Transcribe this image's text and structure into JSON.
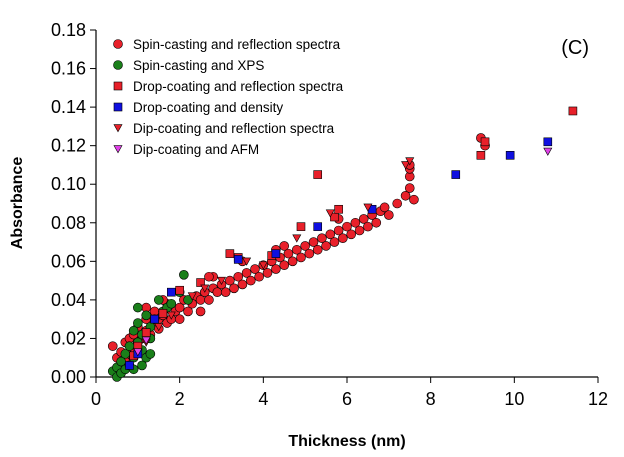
{
  "chart_data": {
    "type": "scatter",
    "panel_label": "(C)",
    "xlabel": "Thickness (nm)",
    "ylabel": "Absorbance",
    "xlim": [
      0,
      12
    ],
    "ylim": [
      0,
      0.18
    ],
    "x_ticks": [
      "0",
      "2",
      "4",
      "6",
      "8",
      "10",
      "12"
    ],
    "y_ticks": [
      "0.00",
      "0.02",
      "0.04",
      "0.06",
      "0.08",
      "0.10",
      "0.12",
      "0.14",
      "0.16",
      "0.18"
    ],
    "grid": false,
    "legend_position": "top-left",
    "series": [
      {
        "name": "Spin-casting and reflection spectra",
        "marker": "circle",
        "color": "#e8202a",
        "points": [
          [
            0.4,
            0.016
          ],
          [
            0.5,
            0.01
          ],
          [
            0.6,
            0.013
          ],
          [
            0.7,
            0.008
          ],
          [
            0.7,
            0.018
          ],
          [
            0.8,
            0.02
          ],
          [
            0.8,
            0.012
          ],
          [
            0.9,
            0.015
          ],
          [
            0.9,
            0.022
          ],
          [
            1.0,
            0.018
          ],
          [
            1.0,
            0.026
          ],
          [
            1.1,
            0.02
          ],
          [
            1.2,
            0.024
          ],
          [
            1.2,
            0.03
          ],
          [
            1.3,
            0.022
          ],
          [
            1.4,
            0.028
          ],
          [
            1.4,
            0.034
          ],
          [
            1.5,
            0.025
          ],
          [
            1.5,
            0.03
          ],
          [
            1.6,
            0.032
          ],
          [
            1.7,
            0.028
          ],
          [
            1.7,
            0.038
          ],
          [
            1.8,
            0.03
          ],
          [
            1.9,
            0.034
          ],
          [
            2.0,
            0.036
          ],
          [
            2.0,
            0.03
          ],
          [
            2.1,
            0.04
          ],
          [
            2.2,
            0.034
          ],
          [
            2.3,
            0.038
          ],
          [
            2.4,
            0.042
          ],
          [
            2.5,
            0.034
          ],
          [
            2.5,
            0.04
          ],
          [
            2.6,
            0.044
          ],
          [
            2.7,
            0.04
          ],
          [
            2.8,
            0.046
          ],
          [
            2.8,
            0.052
          ],
          [
            2.9,
            0.044
          ],
          [
            3.0,
            0.048
          ],
          [
            3.1,
            0.044
          ],
          [
            3.2,
            0.05
          ],
          [
            3.3,
            0.046
          ],
          [
            3.4,
            0.052
          ],
          [
            3.5,
            0.048
          ],
          [
            3.6,
            0.054
          ],
          [
            3.7,
            0.05
          ],
          [
            3.8,
            0.056
          ],
          [
            3.9,
            0.052
          ],
          [
            4.0,
            0.058
          ],
          [
            4.1,
            0.054
          ],
          [
            4.2,
            0.06
          ],
          [
            4.3,
            0.056
          ],
          [
            4.3,
            0.066
          ],
          [
            4.4,
            0.062
          ],
          [
            4.5,
            0.058
          ],
          [
            4.6,
            0.064
          ],
          [
            4.7,
            0.06
          ],
          [
            4.8,
            0.066
          ],
          [
            4.9,
            0.062
          ],
          [
            5.0,
            0.068
          ],
          [
            5.1,
            0.064
          ],
          [
            5.2,
            0.07
          ],
          [
            5.3,
            0.066
          ],
          [
            5.4,
            0.072
          ],
          [
            5.5,
            0.068
          ],
          [
            5.6,
            0.074
          ],
          [
            5.7,
            0.07
          ],
          [
            5.8,
            0.076
          ],
          [
            5.9,
            0.072
          ],
          [
            6.0,
            0.078
          ],
          [
            6.1,
            0.074
          ],
          [
            6.2,
            0.08
          ],
          [
            6.3,
            0.076
          ],
          [
            6.4,
            0.082
          ],
          [
            6.5,
            0.078
          ],
          [
            6.6,
            0.084
          ],
          [
            6.7,
            0.08
          ],
          [
            6.8,
            0.086
          ],
          [
            6.9,
            0.088
          ],
          [
            7.0,
            0.084
          ],
          [
            7.2,
            0.09
          ],
          [
            7.4,
            0.094
          ],
          [
            7.5,
            0.098
          ],
          [
            7.5,
            0.104
          ],
          [
            7.5,
            0.108
          ],
          [
            7.5,
            0.11
          ],
          [
            7.6,
            0.092
          ],
          [
            9.2,
            0.124
          ],
          [
            9.3,
            0.12
          ],
          [
            1.2,
            0.036
          ],
          [
            1.6,
            0.04
          ],
          [
            2.7,
            0.052
          ],
          [
            3.5,
            0.06
          ],
          [
            4.5,
            0.068
          ],
          [
            5.8,
            0.082
          ]
        ]
      },
      {
        "name": "Spin-casting and XPS",
        "marker": "circle",
        "color": "#1a7f1a",
        "points": [
          [
            0.4,
            0.003
          ],
          [
            0.5,
            0.0
          ],
          [
            0.5,
            0.005
          ],
          [
            0.6,
            0.002
          ],
          [
            0.6,
            0.008
          ],
          [
            0.7,
            0.004
          ],
          [
            0.7,
            0.012
          ],
          [
            0.8,
            0.006
          ],
          [
            0.8,
            0.016
          ],
          [
            0.9,
            0.01
          ],
          [
            0.9,
            0.024
          ],
          [
            1.0,
            0.018
          ],
          [
            1.0,
            0.028
          ],
          [
            1.0,
            0.036
          ],
          [
            1.1,
            0.014
          ],
          [
            1.1,
            0.022
          ],
          [
            1.2,
            0.01
          ],
          [
            1.2,
            0.032
          ],
          [
            1.3,
            0.02
          ],
          [
            1.3,
            0.026
          ],
          [
            1.4,
            0.03
          ],
          [
            1.5,
            0.04
          ],
          [
            1.6,
            0.034
          ],
          [
            1.7,
            0.036
          ],
          [
            1.8,
            0.038
          ],
          [
            2.0,
            0.044
          ],
          [
            2.1,
            0.053
          ],
          [
            2.2,
            0.04
          ],
          [
            1.1,
            0.006
          ],
          [
            0.9,
            0.004
          ],
          [
            1.3,
            0.012
          ]
        ]
      },
      {
        "name": "Drop-coating and reflection spectra",
        "marker": "square",
        "color": "#e8202a",
        "points": [
          [
            0.9,
            0.011
          ],
          [
            1.0,
            0.016
          ],
          [
            1.2,
            0.023
          ],
          [
            1.6,
            0.033
          ],
          [
            2.0,
            0.045
          ],
          [
            2.5,
            0.049
          ],
          [
            3.2,
            0.064
          ],
          [
            3.4,
            0.062
          ],
          [
            4.2,
            0.063
          ],
          [
            4.9,
            0.078
          ],
          [
            5.3,
            0.105
          ],
          [
            5.7,
            0.083
          ],
          [
            5.8,
            0.087
          ],
          [
            9.2,
            0.115
          ],
          [
            9.3,
            0.122
          ],
          [
            11.4,
            0.138
          ]
        ]
      },
      {
        "name": "Drop-coating and density",
        "marker": "square",
        "color": "#1010e0",
        "points": [
          [
            0.8,
            0.006
          ],
          [
            1.0,
            0.012
          ],
          [
            1.4,
            0.03
          ],
          [
            1.8,
            0.044
          ],
          [
            3.4,
            0.061
          ],
          [
            4.3,
            0.064
          ],
          [
            5.3,
            0.078
          ],
          [
            6.6,
            0.087
          ],
          [
            8.6,
            0.105
          ],
          [
            9.9,
            0.115
          ],
          [
            10.8,
            0.122
          ]
        ]
      },
      {
        "name": "Dip-coating and reflection spectra",
        "marker": "triangle-down",
        "color": "#e8202a",
        "points": [
          [
            1.2,
            0.018
          ],
          [
            1.5,
            0.026
          ],
          [
            1.8,
            0.032
          ],
          [
            2.3,
            0.042
          ],
          [
            2.6,
            0.046
          ],
          [
            3.0,
            0.05
          ],
          [
            3.6,
            0.06
          ],
          [
            4.0,
            0.058
          ],
          [
            4.8,
            0.072
          ],
          [
            5.6,
            0.085
          ],
          [
            6.5,
            0.088
          ],
          [
            7.4,
            0.11
          ],
          [
            7.5,
            0.112
          ]
        ]
      },
      {
        "name": "Dip-coating and AFM",
        "marker": "triangle-down",
        "color": "#e040e8",
        "points": [
          [
            1.0,
            0.013
          ],
          [
            1.2,
            0.019
          ],
          [
            10.8,
            0.117
          ]
        ]
      }
    ]
  }
}
